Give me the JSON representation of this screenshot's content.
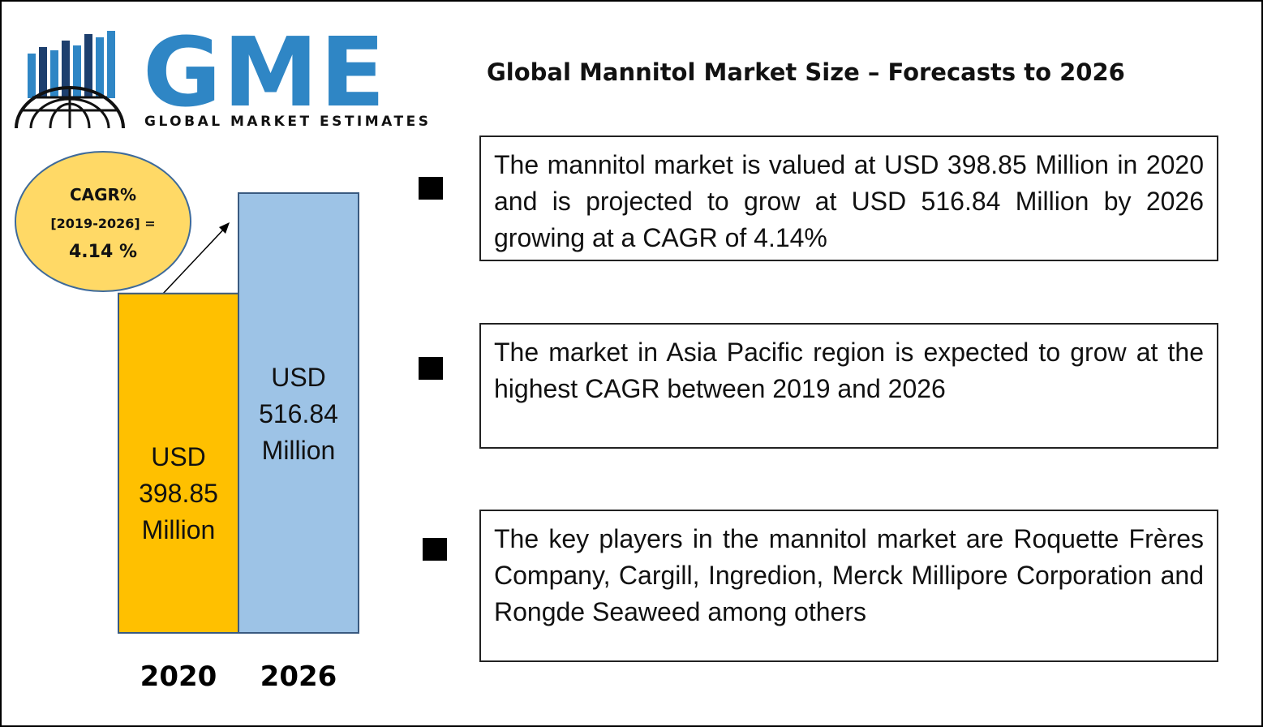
{
  "logo": {
    "wordmark": "GME",
    "tagline": "GLOBAL MARKET ESTIMATES",
    "brand_color": "#2f86c5",
    "icon": "globe-bars-icon"
  },
  "title": "Global Mannitol Market Size – Forecasts to 2026",
  "cagr": {
    "title": "CAGR%",
    "range": "[2019-2026] =",
    "value": "4.14 %",
    "fill_color": "#ffd966"
  },
  "info_boxes": [
    {
      "text": "The mannitol market is valued at USD 398.85 Million in 2020 and is projected to grow at USD 516.84 Million by 2026 growing at a CAGR of 4.14%"
    },
    {
      "text": "The market in Asia Pacific region is expected to grow at the highest CAGR between 2019 and 2026"
    },
    {
      "text": "The key players in the mannitol market are Roquette Frères Company, Cargill, Ingredion, Merck Millipore Corporation and Rongde Seaweed among others"
    }
  ],
  "chart_data": {
    "type": "bar",
    "categories": [
      "2020",
      "2026"
    ],
    "values": [
      398.85,
      516.84
    ],
    "labels": [
      [
        "USD",
        "398.85",
        "Million"
      ],
      [
        "USD",
        "516.84",
        "Million"
      ]
    ],
    "colors": [
      "#ffc000",
      "#9dc3e6"
    ],
    "unit": "USD Million",
    "ylim": [
      0,
      516.84
    ],
    "grid": false,
    "title": "",
    "xlabel": "",
    "ylabel": ""
  }
}
